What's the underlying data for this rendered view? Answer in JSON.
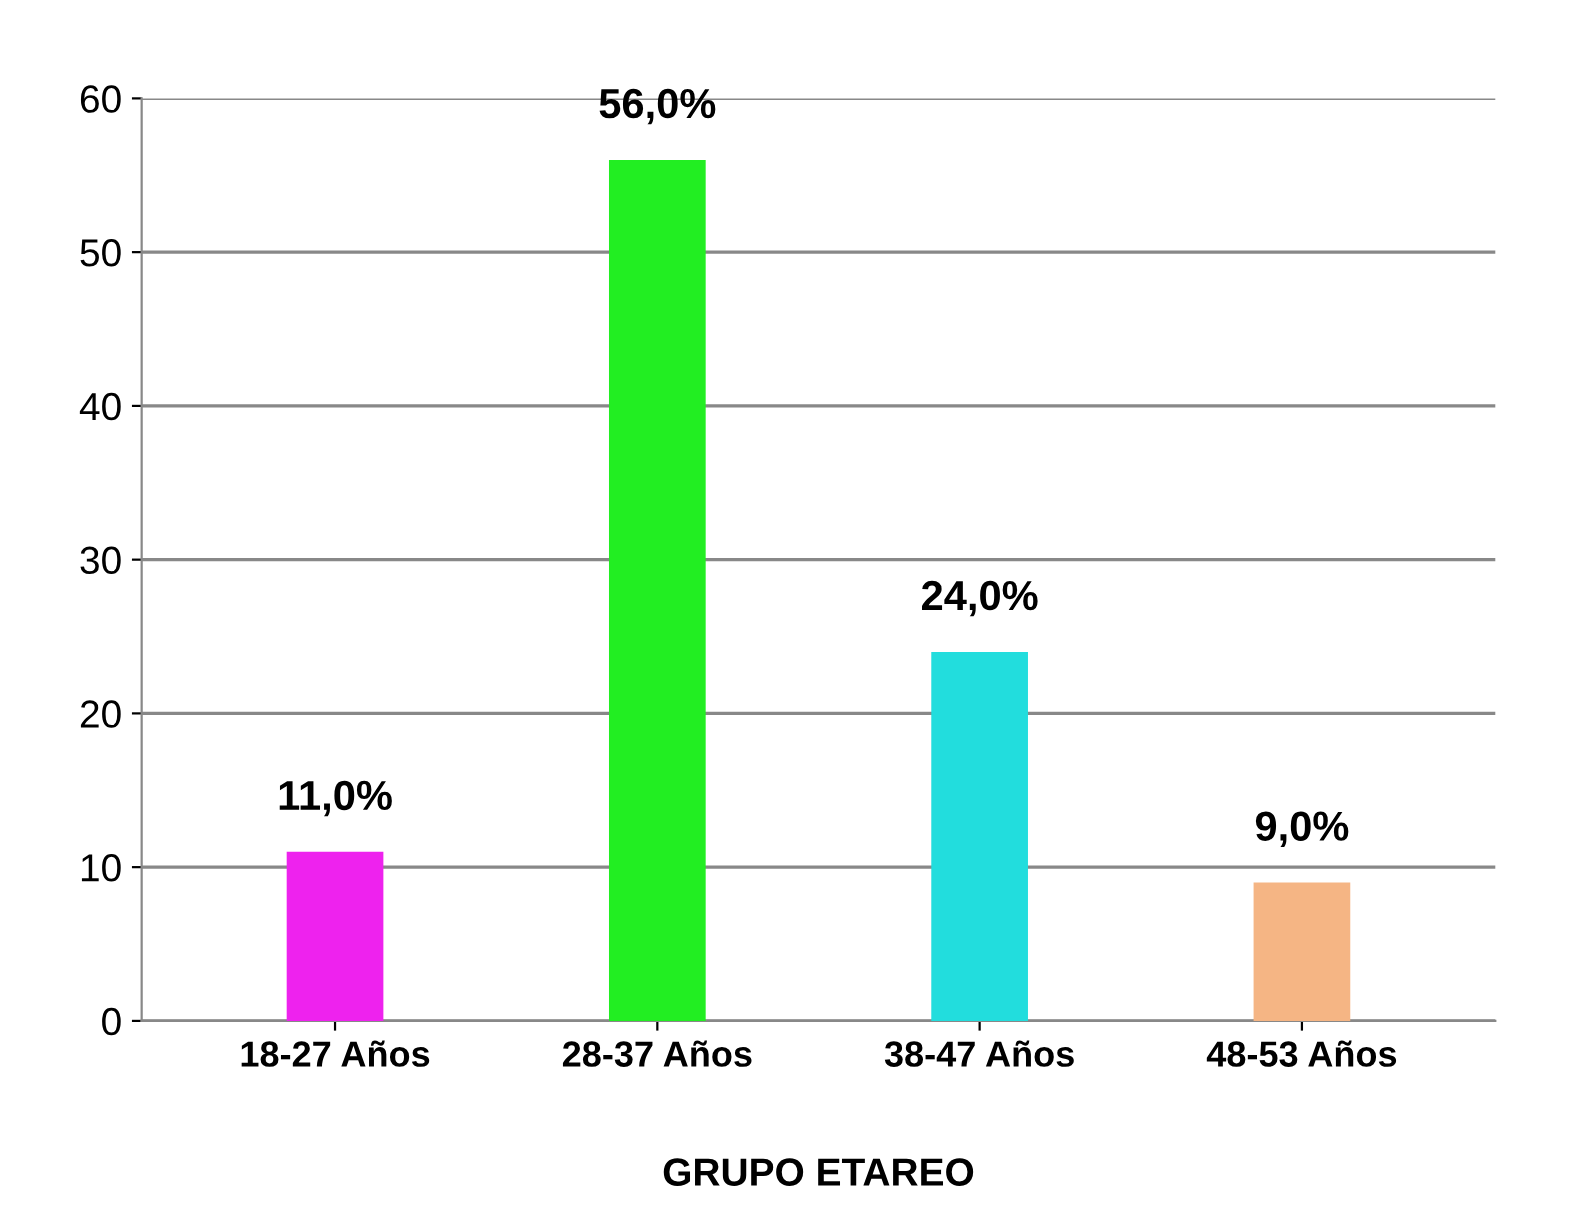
{
  "chart_data": {
    "type": "bar",
    "xlabel": "GRUPO ETAREO",
    "categories": [
      "18-27 Años",
      "28-37 Años",
      "38-47 Años",
      "48-53 Años"
    ],
    "values": [
      11,
      56,
      24,
      9
    ],
    "colors": [
      "#ee22ee",
      "#22ee22",
      "#22dddd",
      "#f5b584"
    ],
    "value_labels": [
      "11,0%",
      "56,0%",
      "24,0%",
      "9,0%"
    ],
    "ylim": [
      0,
      60
    ],
    "yticks": [
      0,
      10,
      20,
      30,
      40,
      50,
      60
    ],
    "grid": "y",
    "legend": false
  }
}
